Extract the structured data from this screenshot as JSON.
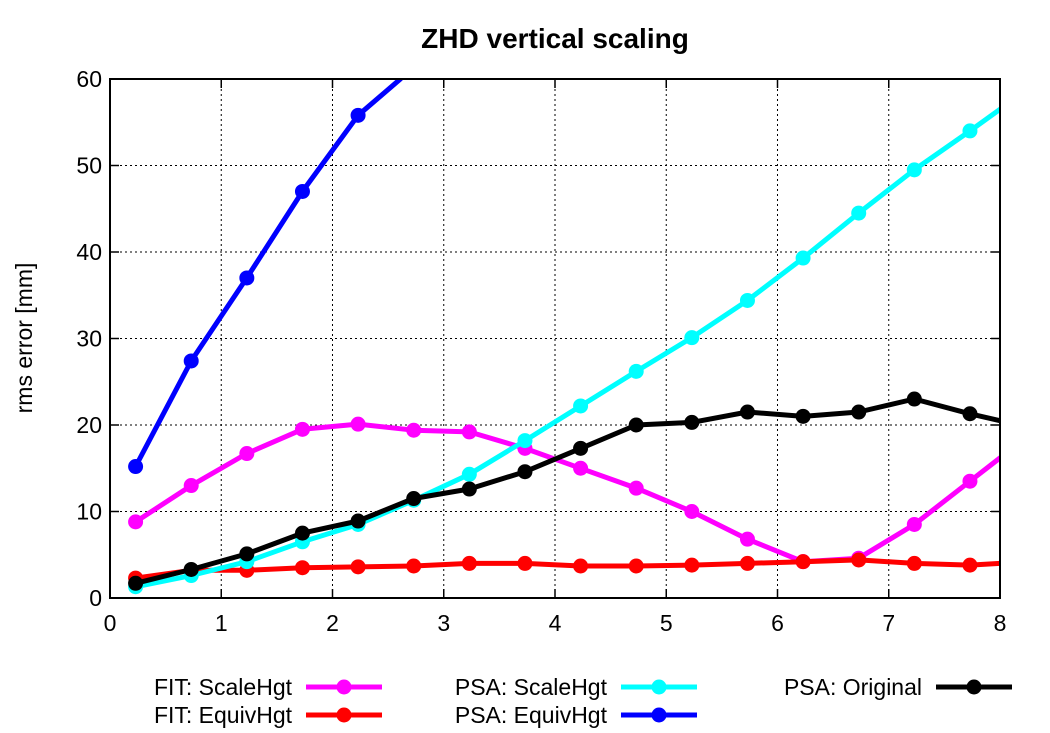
{
  "chart_data": {
    "type": "line",
    "title": "ZHD vertical scaling",
    "xlabel": "",
    "ylabel": "rms error [mm]",
    "xlim": [
      0,
      8
    ],
    "ylim": [
      0,
      60
    ],
    "xticks": [
      0,
      1,
      2,
      3,
      4,
      5,
      6,
      7,
      8
    ],
    "yticks": [
      0,
      10,
      20,
      30,
      40,
      50,
      60
    ],
    "grid": true,
    "legend_position": "bottom",
    "series": [
      {
        "name": "FIT: ScaleHgt",
        "color": "#ff00ff",
        "x": [
          0.23,
          0.73,
          1.23,
          1.73,
          2.23,
          2.73,
          3.23,
          3.73,
          4.23,
          4.73,
          5.23,
          5.73,
          6.23,
          6.73,
          7.23,
          7.73,
          8.0
        ],
        "y": [
          8.8,
          13.0,
          16.7,
          19.5,
          20.1,
          19.4,
          19.2,
          17.3,
          15.0,
          12.7,
          10.0,
          6.8,
          4.2,
          4.6,
          8.5,
          13.5,
          16.2
        ]
      },
      {
        "name": "FIT: EquivHgt",
        "color": "#ff0000",
        "x": [
          0.23,
          0.73,
          1.23,
          1.73,
          2.23,
          2.73,
          3.23,
          3.73,
          4.23,
          4.73,
          5.23,
          5.73,
          6.23,
          6.73,
          7.23,
          7.73,
          8.0
        ],
        "y": [
          2.3,
          3.2,
          3.2,
          3.5,
          3.6,
          3.7,
          4.0,
          4.0,
          3.7,
          3.7,
          3.8,
          4.0,
          4.2,
          4.4,
          4.0,
          3.8,
          4.0
        ]
      },
      {
        "name": "PSA: ScaleHgt",
        "color": "#00ffff",
        "x": [
          0.23,
          0.73,
          1.23,
          1.73,
          2.23,
          2.73,
          3.23,
          3.73,
          4.23,
          4.73,
          5.23,
          5.73,
          6.23,
          6.73,
          7.23,
          7.73,
          8.0
        ],
        "y": [
          1.3,
          2.6,
          4.2,
          6.5,
          8.5,
          11.3,
          14.3,
          18.2,
          22.2,
          26.2,
          30.1,
          34.4,
          39.3,
          44.5,
          49.5,
          54.0,
          56.5
        ]
      },
      {
        "name": "PSA: EquivHgt",
        "color": "#0000ff",
        "x": [
          0.23,
          0.73,
          1.23,
          1.73,
          2.23,
          2.61
        ],
        "y": [
          15.2,
          27.4,
          37.0,
          47.0,
          55.8,
          60.0
        ]
      },
      {
        "name": "PSA: Original",
        "color": "#000000",
        "x": [
          0.23,
          0.73,
          1.23,
          1.73,
          2.23,
          2.73,
          3.23,
          3.73,
          4.23,
          4.73,
          5.23,
          5.73,
          6.23,
          6.73,
          7.23,
          7.73,
          8.0
        ],
        "y": [
          1.7,
          3.3,
          5.1,
          7.5,
          8.9,
          11.5,
          12.6,
          14.6,
          17.3,
          20.0,
          20.3,
          21.5,
          21.0,
          21.5,
          23.0,
          21.3,
          20.5
        ]
      }
    ]
  }
}
